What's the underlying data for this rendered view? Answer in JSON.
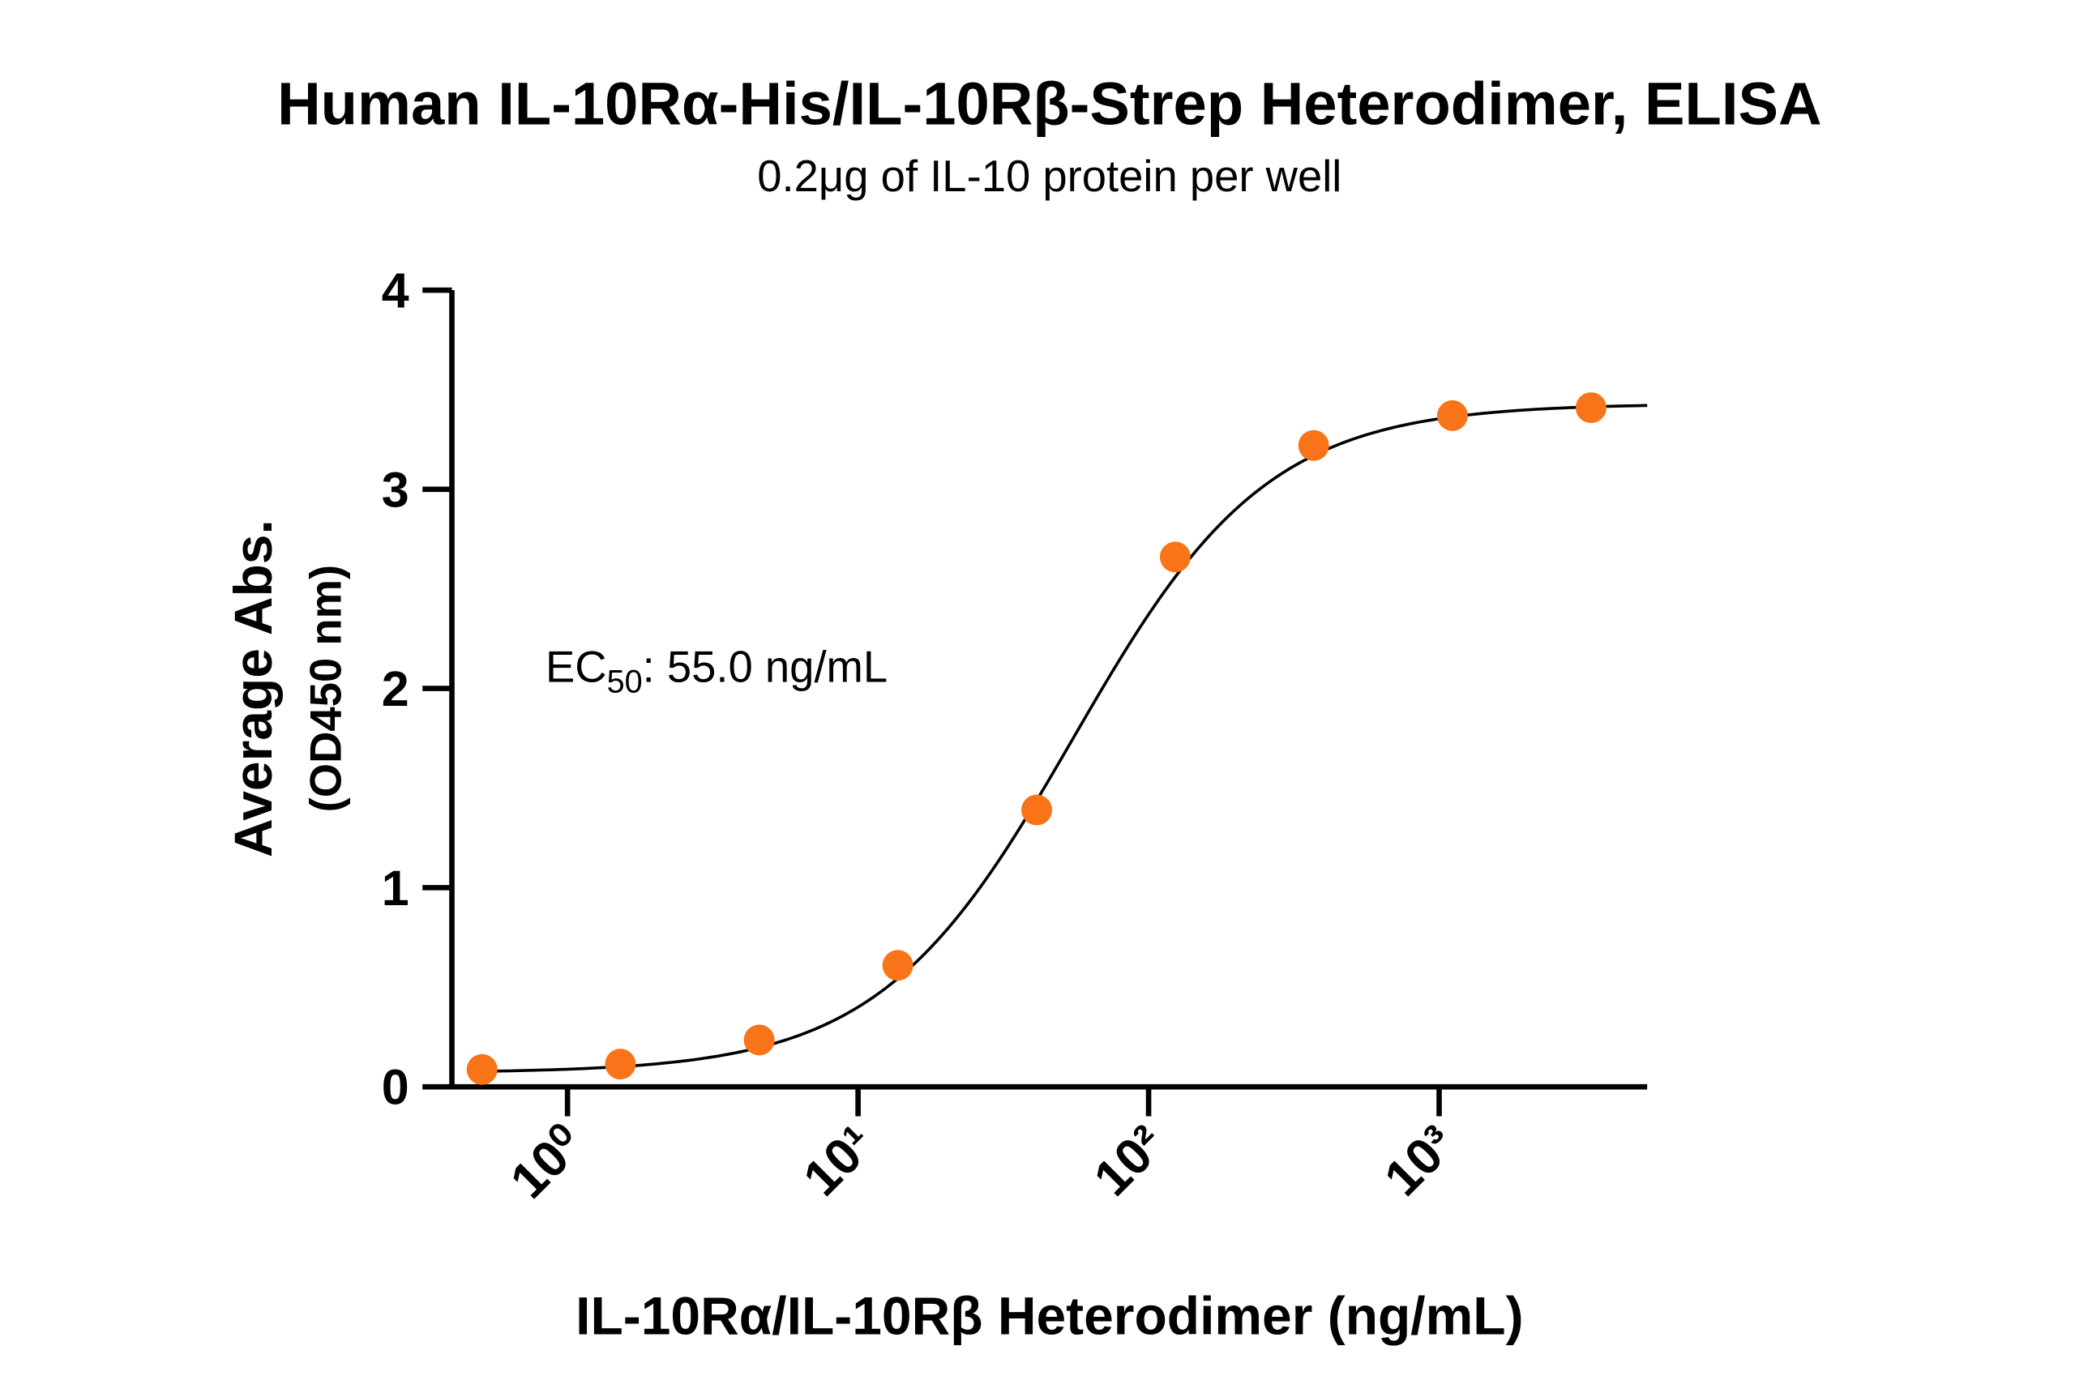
{
  "chart_data": {
    "type": "scatter",
    "title": "Human IL-10Rα-His/IL-10Rβ-Strep Heterodimer, ELISA",
    "subtitle": "0.2μg of IL-10 protein per well",
    "y_label": "Average Abs.",
    "y_label_sub": "(OD450 nm)",
    "x_label": "IL-10Rα/IL-10Rβ Heterodimer (ng/mL)",
    "annotation": {
      "main": "EC",
      "sub": "50",
      "rest": ": 55.0 ng/mL"
    },
    "x": [
      0.508,
      1.52,
      4.57,
      13.7,
      41.2,
      123.5,
      370,
      1111,
      3333
    ],
    "values": [
      0.087,
      0.114,
      0.235,
      0.61,
      1.39,
      2.66,
      3.22,
      3.37,
      3.41
    ],
    "color": "#f97319",
    "fit": {
      "bottom": 0.07,
      "top": 3.43,
      "ec50": 55.0,
      "hill": 1.3
    },
    "x_log": true,
    "xlim": [
      0.4,
      5200
    ],
    "xticks": [
      {
        "value": 1,
        "label": "10⁰"
      },
      {
        "value": 10,
        "label": "10¹"
      },
      {
        "value": 100,
        "label": "10²"
      },
      {
        "value": 1000,
        "label": "10³"
      }
    ],
    "ylim": [
      0,
      4
    ],
    "yticks": [
      0,
      1,
      2,
      3,
      4
    ]
  }
}
